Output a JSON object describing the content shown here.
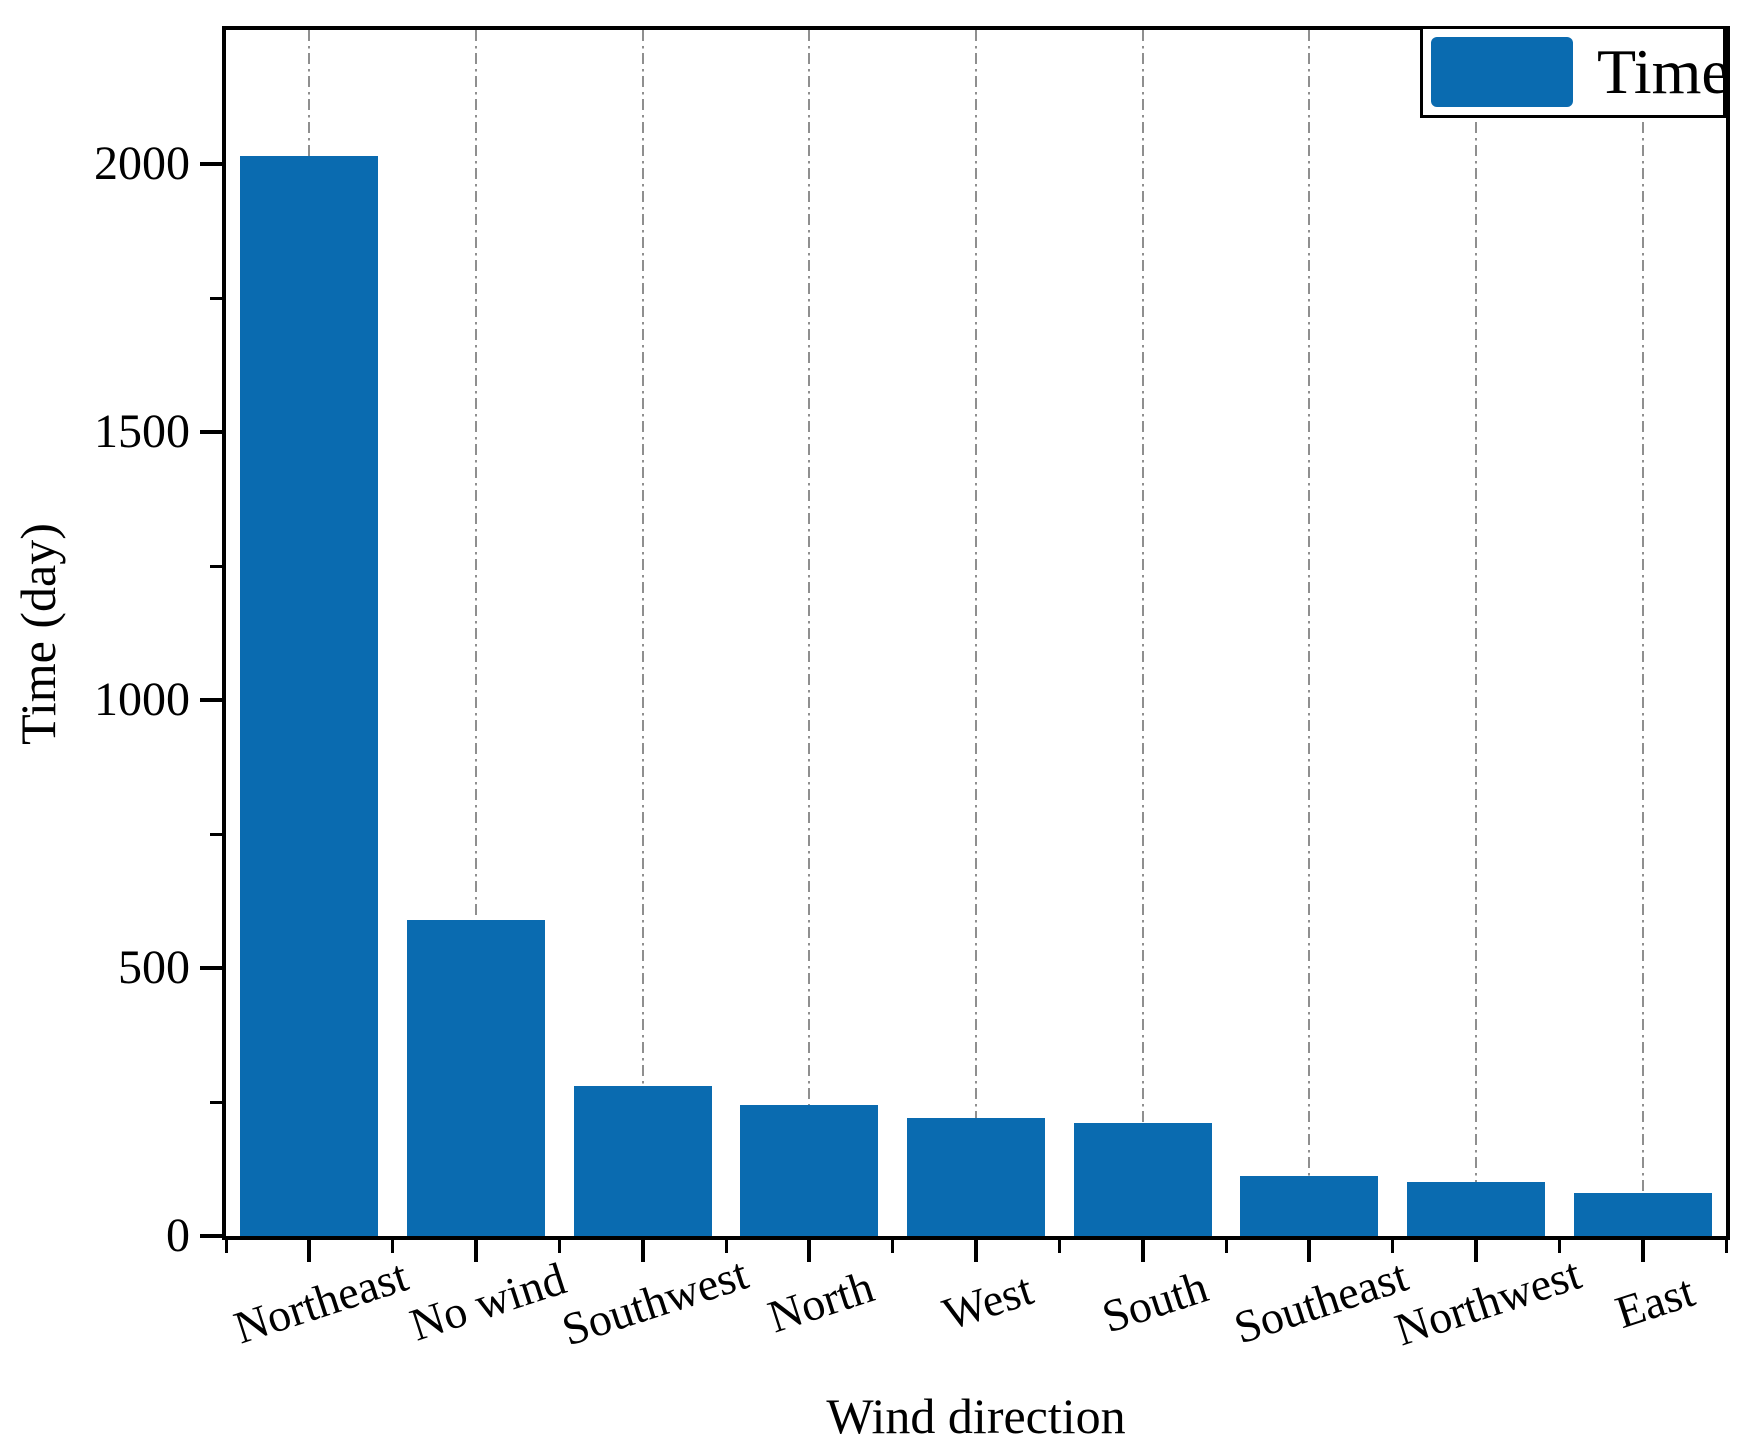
{
  "chart_data": {
    "type": "bar",
    "title": "",
    "categories": [
      "Northeast",
      "No wind",
      "Southwest",
      "North",
      "West",
      "South",
      "Southeast",
      "Northwest",
      "East"
    ],
    "values": [
      2015,
      590,
      280,
      245,
      220,
      210,
      112,
      100,
      80
    ],
    "series": [
      {
        "name": "Time",
        "values": [
          2015,
          590,
          280,
          245,
          220,
          210,
          112,
          100,
          80
        ]
      }
    ],
    "xlabel": "Wind direction",
    "ylabel": "Time (day)",
    "ylim": [
      0,
      2250
    ],
    "yticks_major": [
      0,
      500,
      1000,
      1500,
      2000
    ],
    "ytick_labels": [
      "0",
      "500",
      "1000",
      "1500",
      "2000"
    ],
    "yticks_minor": [
      250,
      750,
      1250,
      1750
    ],
    "grid": "vertical dash-dot gridlines at each category center",
    "legend": {
      "label": "Time",
      "position": "top-right"
    },
    "colors": {
      "bar": "#0a6bb0",
      "grid": "#8f8f8f",
      "axis": "#000000",
      "text": "#000000",
      "legend_background": "#ffffff"
    }
  }
}
